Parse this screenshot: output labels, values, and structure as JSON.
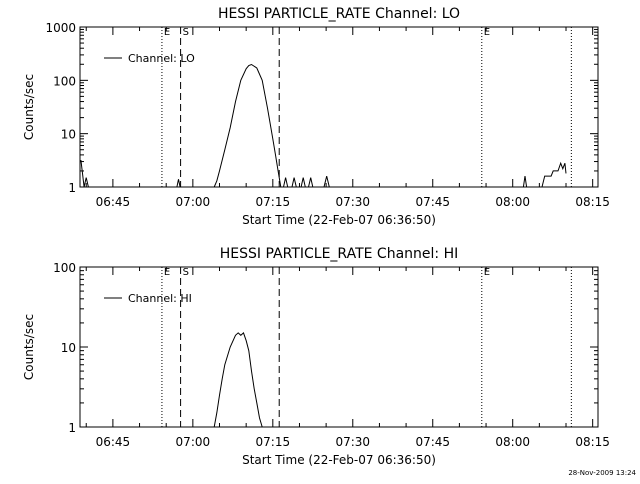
{
  "footer": {
    "timestamp": "28-Nov-2009 13:24"
  },
  "chart_data": [
    {
      "type": "line",
      "title": "HESSI PARTICLE_RATE Channel: LO",
      "xlabel": "Start Time (22-Feb-07 06:36:50)",
      "ylabel": "Counts/sec",
      "yscale": "log",
      "ylim": [
        1,
        1000
      ],
      "yticks": [
        1,
        10,
        100,
        1000
      ],
      "ytick_labels": [
        "1",
        "10",
        "100",
        "1000"
      ],
      "xlim": [
        38.83,
        136.0
      ],
      "xticks": [
        45,
        60,
        75,
        90,
        105,
        120,
        135
      ],
      "xtick_labels": [
        "06:45",
        "07:00",
        "07:15",
        "07:30",
        "07:45",
        "08:00",
        "08:15"
      ],
      "legend": {
        "label": "Channel: LO",
        "position": "top-left"
      },
      "markers": [
        {
          "label": "E",
          "x": 54.2,
          "style": "dotted"
        },
        {
          "label": "S",
          "x": 57.7,
          "style": "dashed"
        },
        {
          "label": "",
          "x": 76.2,
          "style": "dashed"
        },
        {
          "label": "E",
          "x": 114.2,
          "style": "dotted"
        },
        {
          "label": "",
          "x": 131.0,
          "style": "dotted"
        }
      ],
      "series": [
        {
          "name": "Channel: LO",
          "x": [
            39.0,
            39.3,
            39.6,
            40.0,
            40.4,
            40.9
          ],
          "values": [
            3.2,
            1.8,
            1.0,
            1.5,
            1.0,
            1.0
          ]
        },
        {
          "name": "Channel: LO",
          "x": [
            57.0,
            57.3,
            57.6
          ],
          "values": [
            1.0,
            1.4,
            1.0
          ]
        },
        {
          "name": "Channel: LO",
          "x": [
            64.0,
            64.5,
            65.0,
            66.0,
            67.0,
            68.0,
            69.0,
            70.0,
            70.5,
            71.0,
            72.0,
            73.0,
            74.0,
            75.0,
            75.5,
            76.0,
            76.5
          ],
          "values": [
            1.0,
            1.3,
            2.0,
            5.0,
            13.0,
            40.0,
            100.0,
            165.0,
            190.0,
            198.0,
            170.0,
            100.0,
            30.0,
            8.0,
            4.0,
            2.0,
            1.0
          ]
        },
        {
          "name": "Channel: LO",
          "x": [
            77.0,
            77.4,
            77.8
          ],
          "values": [
            1.0,
            1.5,
            1.0
          ]
        },
        {
          "name": "Channel: LO",
          "x": [
            78.6,
            79.0,
            79.4
          ],
          "values": [
            1.0,
            1.5,
            1.0
          ]
        },
        {
          "name": "Channel: LO",
          "x": [
            80.3,
            80.7,
            81.1
          ],
          "values": [
            1.0,
            1.5,
            1.0
          ]
        },
        {
          "name": "Channel: LO",
          "x": [
            81.7,
            82.1,
            82.5
          ],
          "values": [
            1.0,
            1.5,
            1.0
          ]
        },
        {
          "name": "Channel: LO",
          "x": [
            84.6,
            85.1,
            85.6
          ],
          "values": [
            1.0,
            1.6,
            1.0
          ]
        },
        {
          "name": "Channel: LO",
          "x": [
            122.0,
            122.3,
            122.6
          ],
          "values": [
            1.0,
            1.6,
            1.0
          ]
        },
        {
          "name": "Channel: LO",
          "x": [
            125.5,
            126.0,
            127.2,
            127.6,
            128.5,
            129.0,
            129.4,
            129.8,
            130.0
          ],
          "values": [
            1.0,
            1.6,
            1.6,
            2.0,
            2.0,
            2.8,
            2.2,
            2.8,
            1.8
          ]
        }
      ]
    },
    {
      "type": "line",
      "title": "HESSI PARTICLE_RATE Channel: HI",
      "xlabel": "Start Time (22-Feb-07 06:36:50)",
      "ylabel": "Counts/sec",
      "yscale": "log",
      "ylim": [
        1,
        100
      ],
      "yticks": [
        1,
        10,
        100
      ],
      "ytick_labels": [
        "1",
        "10",
        "100"
      ],
      "xlim": [
        38.83,
        136.0
      ],
      "xticks": [
        45,
        60,
        75,
        90,
        105,
        120,
        135
      ],
      "xtick_labels": [
        "06:45",
        "07:00",
        "07:15",
        "07:30",
        "07:45",
        "08:00",
        "08:15"
      ],
      "legend": {
        "label": "Channel: HI",
        "position": "top-left"
      },
      "markers": [
        {
          "label": "E",
          "x": 54.2,
          "style": "dotted"
        },
        {
          "label": "S",
          "x": 57.7,
          "style": "dashed"
        },
        {
          "label": "",
          "x": 76.2,
          "style": "dashed"
        },
        {
          "label": "E",
          "x": 114.2,
          "style": "dotted"
        },
        {
          "label": "",
          "x": 131.0,
          "style": "dotted"
        }
      ],
      "series": [
        {
          "name": "Channel: HI",
          "x": [
            64.0,
            64.5,
            65.0,
            65.5,
            66.0,
            67.0,
            68.0,
            68.5,
            69.0,
            69.5,
            70.0,
            70.5,
            71.0,
            71.5,
            72.0,
            72.5,
            73.0
          ],
          "values": [
            1.0,
            1.5,
            2.5,
            4.0,
            6.0,
            10.0,
            14.0,
            15.0,
            14.0,
            15.0,
            12.0,
            9.0,
            5.0,
            3.0,
            2.0,
            1.3,
            1.0
          ]
        }
      ]
    }
  ]
}
